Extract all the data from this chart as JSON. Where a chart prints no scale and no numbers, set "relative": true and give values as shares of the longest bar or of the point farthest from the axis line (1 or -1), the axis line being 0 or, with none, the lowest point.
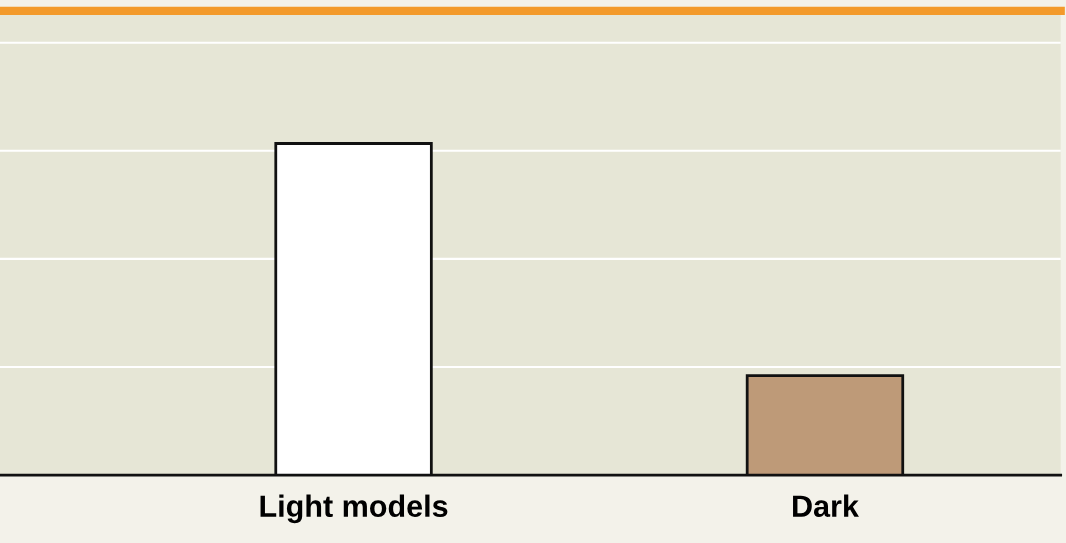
{
  "chart_data": {
    "type": "bar",
    "relative": true,
    "categories": [
      "Light models",
      "Dark"
    ],
    "values": [
      1,
      0.3
    ],
    "colors": [
      "#ffffff",
      "#be9a78"
    ],
    "grid": "y"
  }
}
